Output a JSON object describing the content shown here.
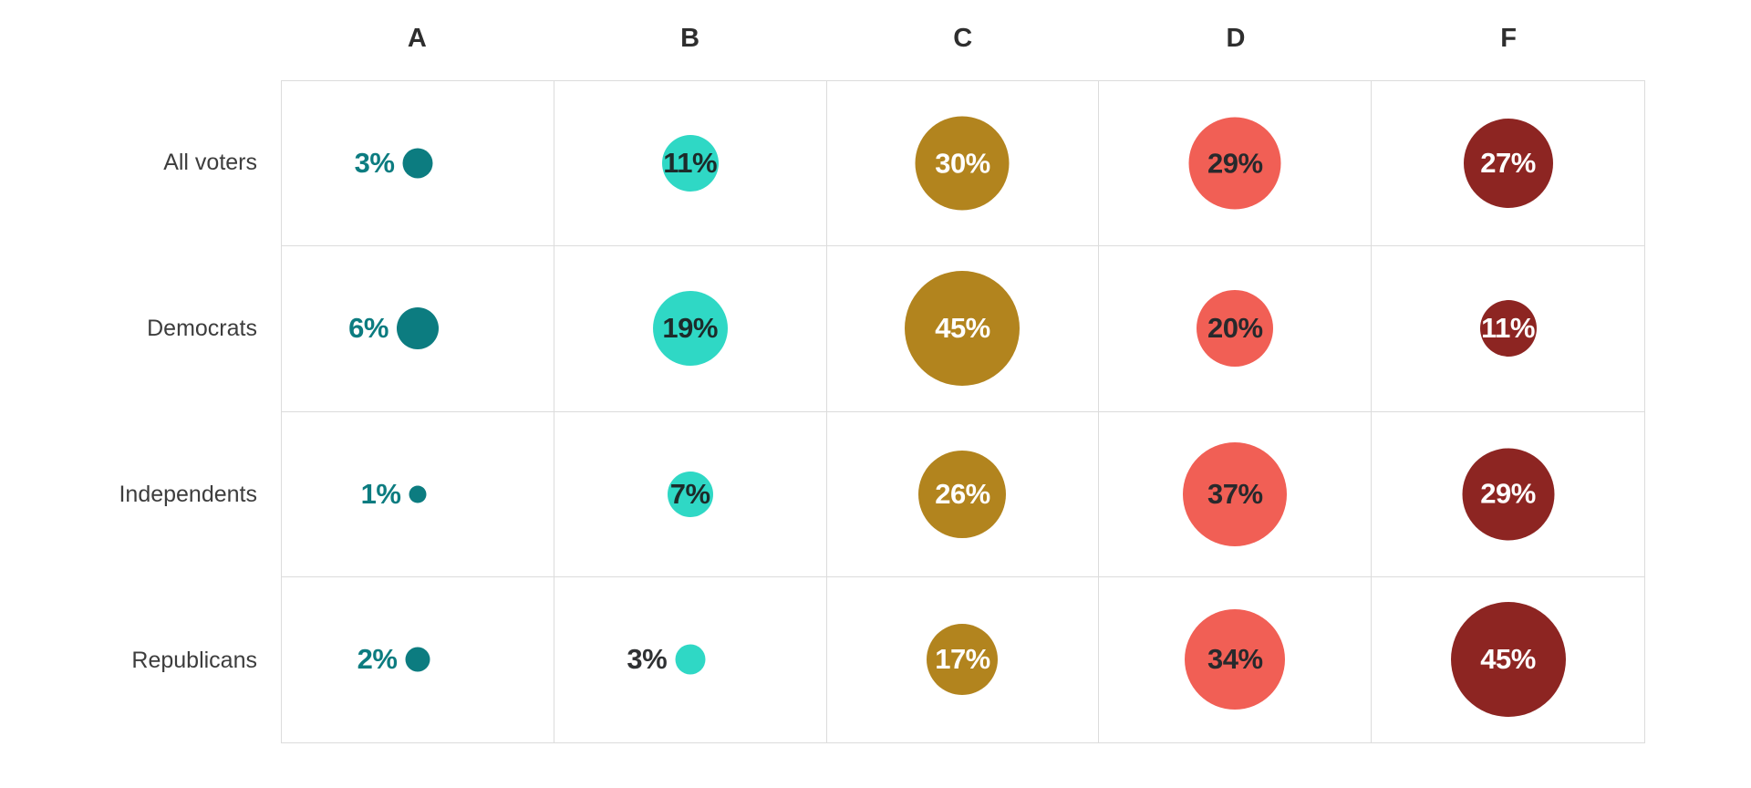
{
  "chart_data": {
    "type": "bubble",
    "subtype": "bubble-grid-matrix",
    "unit": "%",
    "columns": [
      {
        "label": "A",
        "bubble_color": "#0c7c80",
        "inside_text_color": "#ffffff",
        "outside_text_color": "#0c7c80"
      },
      {
        "label": "B",
        "bubble_color": "#2fd8c5",
        "inside_text_color": "#1d2b2a",
        "outside_text_color": "#2f3133"
      },
      {
        "label": "C",
        "bubble_color": "#b2841e",
        "inside_text_color": "#ffffff",
        "outside_text_color": "#b2841e"
      },
      {
        "label": "D",
        "bubble_color": "#f15f55",
        "inside_text_color": "#27292c",
        "outside_text_color": "#27292c"
      },
      {
        "label": "F",
        "bubble_color": "#8d2522",
        "inside_text_color": "#ffffff",
        "outside_text_color": "#8d2522"
      }
    ],
    "categories": [
      "A",
      "B",
      "C",
      "D",
      "F"
    ],
    "series": [
      {
        "name": "All voters",
        "values": [
          3,
          11,
          30,
          29,
          27
        ],
        "labels": [
          "3%",
          "11%",
          "30%",
          "29%",
          "27%"
        ]
      },
      {
        "name": "Democrats",
        "values": [
          6,
          19,
          45,
          20,
          11
        ],
        "labels": [
          "6%",
          "19%",
          "45%",
          "20%",
          "11%"
        ]
      },
      {
        "name": "Independents",
        "values": [
          1,
          7,
          26,
          37,
          29
        ],
        "labels": [
          "1%",
          "7%",
          "26%",
          "37%",
          "29%"
        ]
      },
      {
        "name": "Republicans",
        "values": [
          2,
          3,
          17,
          34,
          45
        ],
        "labels": [
          "2%",
          "3%",
          "17%",
          "34%",
          "45%"
        ]
      }
    ],
    "title": "",
    "legend": "none",
    "grid_line_color": "#dcdcdc",
    "header_text_color": "#2e2e2e",
    "row_label_text_color": "#3d3d3d"
  }
}
